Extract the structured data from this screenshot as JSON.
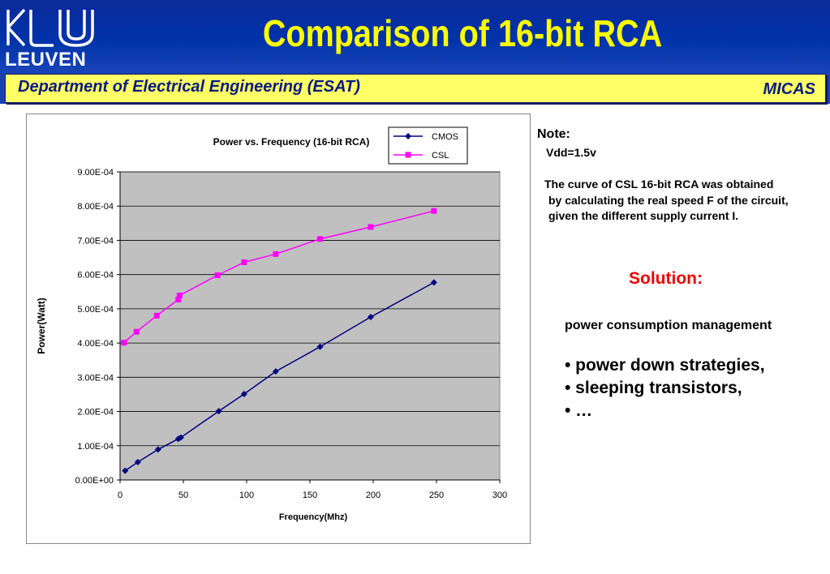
{
  "header": {
    "logo_text": "LEUVEN",
    "title": "Comparison of 16-bit RCA",
    "department": "Department of Electrical Engineering (ESAT)",
    "group": "MICAS"
  },
  "notes": {
    "title": "Note:",
    "vdd": "Vdd=1.5v",
    "line1": "The curve of CSL 16-bit RCA was obtained",
    "line2": "by calculating the real speed F of the circuit,",
    "line3": "given the different supply current I.",
    "solution": "Solution:",
    "pcm": "power consumption management",
    "bullets": [
      "• power down strategies,",
      "• sleeping transistors,",
      "• …"
    ]
  },
  "colors": {
    "header_bg": "#0033aa",
    "title": "#ffff00",
    "band": "#ffff66",
    "solution": "#ee0000",
    "plot_bg": "#c0c0c0",
    "cmos": "#000080",
    "csl": "#ff00ff"
  },
  "chart_data": {
    "type": "line",
    "title": "Power vs. Frequency (16-bit RCA)",
    "xlabel": "Frequency(Mhz)",
    "ylabel": "Power(Watt)",
    "xlim": [
      0,
      300
    ],
    "ylim": [
      0,
      0.0009
    ],
    "xticks": [
      0,
      50,
      100,
      150,
      200,
      250,
      300
    ],
    "xtick_labels": [
      "0",
      "50",
      "100",
      "150",
      "200",
      "250",
      "300"
    ],
    "yticks": [
      0,
      0.0001,
      0.0002,
      0.0003,
      0.0004,
      0.0005,
      0.0006,
      0.0007,
      0.0008,
      0.0009
    ],
    "ytick_labels": [
      "0.00E+00",
      "1.00E-04",
      "2.00E-04",
      "3.00E-04",
      "4.00E-04",
      "5.00E-04",
      "6.00E-04",
      "7.00E-04",
      "8.00E-04",
      "9.00E-04"
    ],
    "grid": "horizontal",
    "legend": "top-right",
    "series": [
      {
        "name": "CMOS",
        "marker": "diamond",
        "color": "#000080",
        "x": [
          4,
          14,
          30,
          46,
          48,
          78,
          98,
          123,
          158,
          198,
          248
        ],
        "y": [
          2.7e-05,
          5.2e-05,
          8.9e-05,
          0.00012,
          0.000124,
          0.000201,
          0.000251,
          0.000317,
          0.000389,
          0.000476,
          0.000577
        ]
      },
      {
        "name": "CSL",
        "marker": "square",
        "color": "#ff00ff",
        "x": [
          3,
          13,
          29,
          46,
          47,
          77,
          98,
          123,
          158,
          198,
          248
        ],
        "y": [
          0.000401,
          0.000433,
          0.00048,
          0.000527,
          0.000539,
          0.000598,
          0.000636,
          0.00066,
          0.000704,
          0.000739,
          0.000786
        ]
      }
    ]
  }
}
